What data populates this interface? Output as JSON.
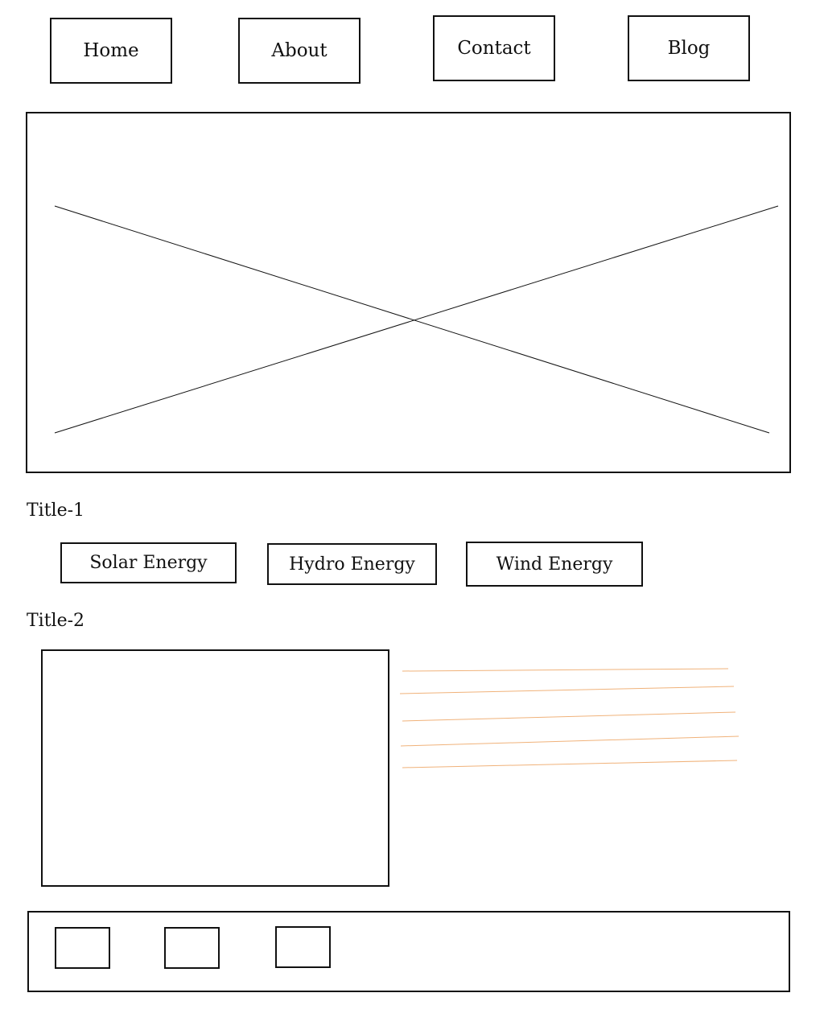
{
  "nav": {
    "items": [
      {
        "label": "Home"
      },
      {
        "label": "About"
      },
      {
        "label": "Contact"
      },
      {
        "label": "Blog"
      }
    ]
  },
  "hero": {
    "image_placeholder": "image-placeholder"
  },
  "section1": {
    "title": "Title-1",
    "buttons": [
      {
        "label": "Solar Energy"
      },
      {
        "label": "Hydro Energy"
      },
      {
        "label": "Wind Energy"
      }
    ]
  },
  "section2": {
    "title": "Title-2",
    "text_line_color": "#f0b27a",
    "text_line_count": 5
  },
  "footer": {
    "icon_count": 3
  }
}
